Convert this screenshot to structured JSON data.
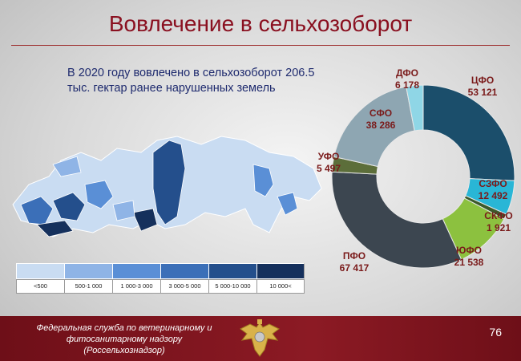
{
  "title": "Вовлечение в сельхозоборот",
  "intro": "В 2020 году вовлечено в сельхозоборот 206.5 тыс. гектар ранее нарушенных земель",
  "legend": {
    "labels": [
      "<500",
      "500-1 000",
      "1 000-3 000",
      "3 000-5 000",
      "5 000-10 000",
      "10 000<"
    ],
    "colors": [
      "#c9dcf2",
      "#8fb4e6",
      "#5a8fd6",
      "#3b6fb8",
      "#244f8c",
      "#15305c"
    ]
  },
  "chart_data": {
    "type": "pie",
    "categories": [
      "ЦФО",
      "СЗФО",
      "СКФО",
      "ЮФО",
      "ПФО",
      "УФО",
      "СФО",
      "ДФО"
    ],
    "values": [
      53121,
      12492,
      1921,
      21538,
      67417,
      5497,
      38286,
      6178
    ],
    "value_labels": [
      "53 121",
      "12 492",
      "1 921",
      "21 538",
      "67 417",
      "5 497",
      "38 286",
      "6 178"
    ],
    "colors": [
      "#1b4e6b",
      "#29b6d6",
      "#3b5a2a",
      "#8cc13f",
      "#3c4650",
      "#5c6e3a",
      "#8ea6b2",
      "#8fd6e6"
    ],
    "donut": true
  },
  "footer": {
    "line1": "Федеральная служба по ветеринарному и",
    "line2": "фитосанитарному  надзору",
    "line3": "(Россельхознадзор)",
    "page": "76"
  }
}
